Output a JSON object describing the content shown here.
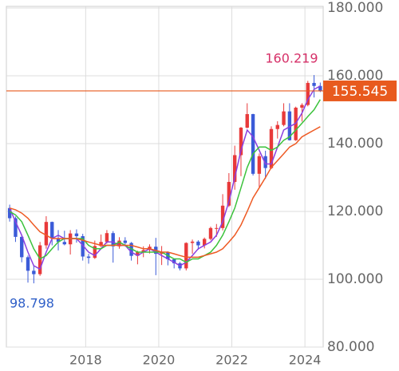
{
  "chart_data": {
    "type": "candlestick",
    "x": [
      2015.92,
      2016.08,
      2016.25,
      2016.42,
      2016.58,
      2016.75,
      2016.92,
      2017.08,
      2017.25,
      2017.42,
      2017.58,
      2017.75,
      2017.92,
      2018.08,
      2018.25,
      2018.42,
      2018.58,
      2018.75,
      2018.92,
      2019.08,
      2019.25,
      2019.42,
      2019.58,
      2019.75,
      2019.92,
      2020.08,
      2020.25,
      2020.42,
      2020.58,
      2020.75,
      2020.92,
      2021.08,
      2021.25,
      2021.42,
      2021.58,
      2021.75,
      2021.92,
      2022.08,
      2022.25,
      2022.42,
      2022.58,
      2022.75,
      2022.92,
      2023.08,
      2023.25,
      2023.42,
      2023.58,
      2023.75,
      2023.92,
      2024.08,
      2024.25,
      2024.42
    ],
    "open": [
      121,
      118,
      112.5,
      106.5,
      102.5,
      101.5,
      110,
      116.9,
      112,
      111,
      110.3,
      113.5,
      112.7,
      106.7,
      106.3,
      109.8,
      111,
      113.6,
      109.7,
      111.4,
      110.7,
      106.9,
      108,
      108.6,
      109.6,
      107.5,
      107.9,
      105.9,
      104.7,
      103.2,
      110.7,
      111.1,
      110,
      111.9,
      115.1,
      115.1,
      121.7,
      128.7,
      136.6,
      144.7,
      148.7,
      131.1,
      136.3,
      132.8,
      144.3,
      145.5,
      149.5,
      141,
      150.6,
      151.4,
      157.9,
      157
    ],
    "high": [
      122,
      118.5,
      113,
      107,
      104,
      111,
      118.6,
      117,
      114.5,
      114.3,
      114.5,
      114.7,
      113.4,
      107.5,
      111.4,
      113.2,
      114.5,
      114.2,
      112.4,
      112.4,
      111,
      108.4,
      109.7,
      110.3,
      112.2,
      109.8,
      108.2,
      106.1,
      105.1,
      110.9,
      111.7,
      111.5,
      112.3,
      115.5,
      116.3,
      125.1,
      131.3,
      139.4,
      144.9,
      151.9,
      148.8,
      137.1,
      137.9,
      145.1,
      146.6,
      151.9,
      151.9,
      150.9,
      151.9,
      158.5,
      160.219,
      158
    ],
    "low": [
      117,
      111,
      105,
      99,
      98.798,
      101,
      109,
      110,
      108.5,
      110,
      107.3,
      110.8,
      105.5,
      104.6,
      106,
      109.5,
      110.5,
      104.9,
      109,
      109.7,
      105.5,
      104.4,
      106.5,
      107.6,
      101.2,
      104.2,
      104.1,
      103.2,
      102.6,
      102.6,
      107.5,
      108.7,
      109.1,
      111.5,
      112.5,
      114.4,
      121.3,
      126.4,
      130.4,
      144.5,
      130.6,
      127.2,
      129.6,
      132.5,
      141.5,
      145.1,
      140.9,
      140.8,
      146.5,
      151,
      153.6,
      155.2
    ],
    "close": [
      118,
      112.5,
      106.5,
      102.5,
      101.5,
      110,
      116.9,
      112,
      111,
      110.3,
      113.5,
      112.7,
      106.7,
      106.3,
      109.8,
      111,
      113.6,
      109.7,
      111.4,
      110.7,
      106.9,
      108,
      108.6,
      109.6,
      107.5,
      107.9,
      105.9,
      104.7,
      103.2,
      110.7,
      111.1,
      110,
      111.9,
      115.1,
      115.1,
      121.7,
      128.7,
      136.6,
      144.7,
      148.7,
      131.1,
      136.3,
      132.8,
      144.3,
      145.5,
      149.5,
      141,
      150.6,
      151.4,
      157.9,
      157,
      155.545
    ],
    "up_color": "#e8393a",
    "down_color": "#3b5bd8",
    "series": [
      {
        "color": "#8a3fe0",
        "values": [
          121,
          117,
          113,
          108,
          104,
          103,
          108,
          112,
          113,
          112,
          112,
          112,
          110,
          108,
          107,
          109,
          111,
          111,
          110,
          110,
          108,
          107,
          108,
          109,
          108,
          107,
          106,
          105,
          104,
          105,
          107,
          109,
          110,
          111,
          113,
          117,
          123,
          130,
          138,
          144,
          142,
          138,
          134,
          134,
          139,
          144,
          145,
          146,
          149,
          153,
          156,
          157
        ]
      },
      {
        "color": "#3cc23c",
        "values": [
          120,
          119,
          117,
          113,
          109,
          106,
          107,
          109,
          111,
          112,
          112,
          112,
          112,
          110,
          109,
          109,
          110,
          110,
          111,
          110,
          109,
          108,
          108,
          108,
          108,
          108,
          107,
          106,
          106,
          105,
          106,
          106,
          107,
          108,
          110,
          113,
          117,
          121,
          127,
          133,
          137,
          139,
          139,
          138,
          139,
          141,
          142,
          144,
          146,
          148,
          150,
          153
        ]
      },
      {
        "color": "#ee5a24",
        "values": [
          121,
          120.5,
          119.5,
          118,
          116,
          114,
          113,
          112,
          112,
          112,
          112,
          112,
          111.5,
          111,
          110.5,
          110,
          110,
          110,
          110,
          110,
          110,
          109.5,
          109,
          109,
          108.5,
          108,
          108,
          107.5,
          107,
          106.5,
          106.5,
          106.5,
          107,
          107.5,
          108,
          109,
          111,
          113,
          116,
          120,
          124,
          127,
          130,
          133,
          135,
          137,
          139,
          140,
          142,
          143,
          144,
          145
        ]
      }
    ],
    "max_value": 160.219,
    "max_color": "#d63068",
    "min_value": 98.798,
    "min_color": "#2f5fc8",
    "last_value": 155.545,
    "last_color": "#e85a1e",
    "xlim": [
      2015.83,
      2024.5
    ],
    "xticks": [
      2018,
      2020,
      2022,
      2024
    ],
    "ylim": [
      80,
      180
    ],
    "yticks": [
      {
        "value": 80,
        "label": "80.000"
      },
      {
        "value": 100,
        "label": "100.000"
      },
      {
        "value": 120,
        "label": "120.000"
      },
      {
        "value": 140,
        "label": "140.000"
      },
      {
        "value": 160,
        "label": "160.000"
      },
      {
        "value": 180,
        "label": "180.000"
      }
    ],
    "grid": true
  }
}
